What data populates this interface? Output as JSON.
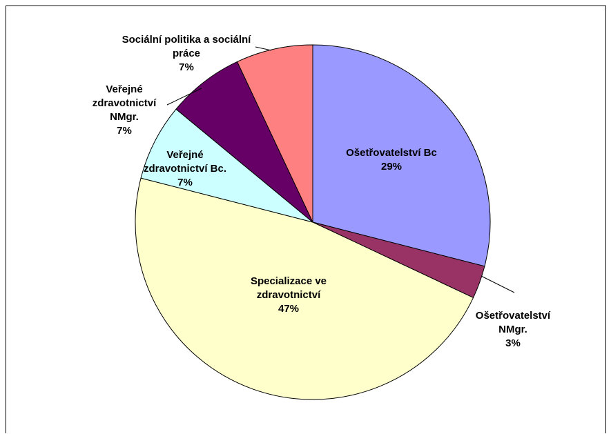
{
  "chart_data": {
    "type": "pie",
    "categories": [
      "Ošetřovatelství Bc",
      "Ošetřovatelství NMgr.",
      "Specializace ve zdravotnictví",
      "Veřejné zdravotnictví Bc.",
      "Veřejné zdravotnictví NMgr.",
      "Sociální politika a sociální práce"
    ],
    "values": [
      29,
      3,
      47,
      7,
      7,
      7
    ],
    "value_labels": [
      "29%",
      "3%",
      "47%",
      "7%",
      "7%",
      "7%"
    ],
    "colors": [
      "#9999ff",
      "#993366",
      "#ffffcc",
      "#ccffff",
      "#660066",
      "#ff8080"
    ]
  }
}
